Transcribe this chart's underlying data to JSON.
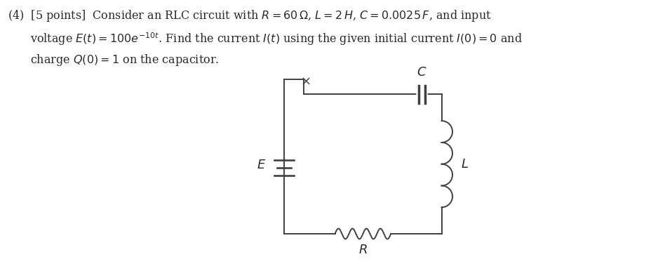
{
  "background_color": "#ffffff",
  "text_color": "#2a2a2a",
  "line_color": "#404040",
  "title_line1": "(4)  [5 points]  Consider an RLC circuit with $R = 60\\,\\Omega$, $L = 2\\,H$, $C = 0.0025\\,F$, and input",
  "title_line2": "voltage $E(t) = 100e^{-10t}$. Find the current $I(t)$ using the given initial current $I(0) = 0$ and",
  "title_line3": "charge $Q(0) = 1$ on the capacitor.",
  "label_E": "$E$",
  "label_L": "$L$",
  "label_C": "$C$",
  "label_R": "$R$",
  "figsize": [
    9.58,
    3.86
  ],
  "dpi": 100,
  "font_size_text": 11.5,
  "font_size_label": 13
}
